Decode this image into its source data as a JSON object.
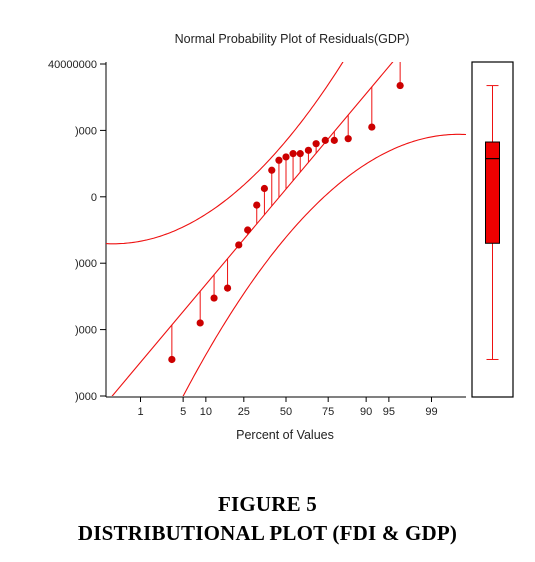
{
  "chart_data": [
    {
      "type": "scatter",
      "subtype": "normal-probability-plot",
      "title": "Normal Probability Plot of Residuals(GDP)",
      "xlabel": "Percent of Values",
      "ylabel": "",
      "x_ticks": [
        "1",
        "5",
        "10",
        "25",
        "50",
        "75",
        "90",
        "95",
        "99"
      ],
      "y_tick_labels": [
        "40000000",
        ")000",
        "0",
        ")000",
        ")000",
        ")000"
      ],
      "ylim": [
        -60000000,
        40000000
      ],
      "series": [
        {
          "points": [
            {
              "x": 3.4,
              "y": -49000000
            },
            {
              "x": 8.5,
              "y": -38000000
            },
            {
              "x": 12.5,
              "y": -30500000
            },
            {
              "x": 17.5,
              "y": -27500000
            },
            {
              "x": 22.5,
              "y": -14500000
            },
            {
              "x": 27,
              "y": -10000000
            },
            {
              "x": 32,
              "y": -2500000
            },
            {
              "x": 36.5,
              "y": 2500000
            },
            {
              "x": 41,
              "y": 8000000
            },
            {
              "x": 45.5,
              "y": 11000000
            },
            {
              "x": 50,
              "y": 12000000
            },
            {
              "x": 54.5,
              "y": 13000000
            },
            {
              "x": 59,
              "y": 13000000
            },
            {
              "x": 64,
              "y": 14000000
            },
            {
              "x": 68.5,
              "y": 16000000
            },
            {
              "x": 73.5,
              "y": 17000000
            },
            {
              "x": 78,
              "y": 17000000
            },
            {
              "x": 84,
              "y": 17500000
            },
            {
              "x": 91.5,
              "y": 21000000
            },
            {
              "x": 96.6,
              "y": 33500000
            }
          ]
        }
      ],
      "reference_line": true,
      "confidence_bands": true,
      "grid": false,
      "legend": "none"
    },
    {
      "type": "boxplot",
      "orientation": "vertical",
      "min": -49000000,
      "q1": -14000000,
      "median": 11500000,
      "q3": 16500000,
      "max": 33500000
    }
  ],
  "caption": {
    "figure_label": "FIGURE 5",
    "title": "DISTRIBUTIONAL PLOT (FDI & GDP)"
  },
  "colors": {
    "points": "#cc0000",
    "lines": "#ee1111",
    "box_fill": "#ee0000",
    "axis": "#000000"
  }
}
